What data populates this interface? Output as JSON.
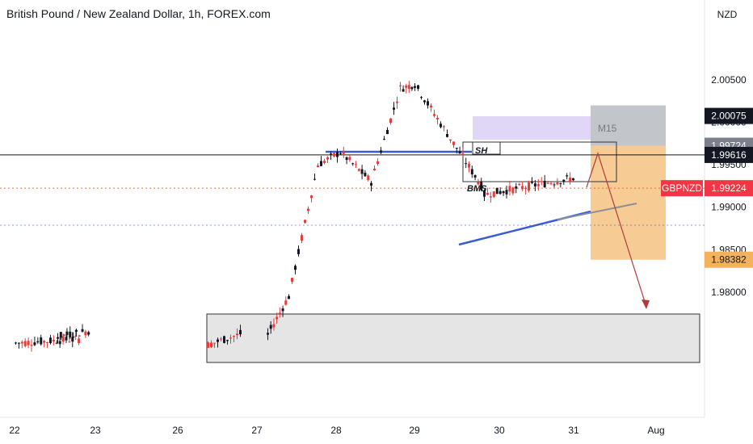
{
  "chart_data": {
    "type": "candlestick",
    "title": "British Pound / New Zealand Dollar, 1h, FOREX.com",
    "symbol": "GBPNZD",
    "currency_label": "NZD",
    "x_ticks": [
      "22",
      "23",
      "26",
      "27",
      "28",
      "29",
      "30",
      "31",
      "Aug"
    ],
    "y_ticks": [
      "2.00500",
      "2.00000",
      "1.99500",
      "1.99000",
      "1.98500",
      "1.98000"
    ],
    "y_range": [
      1.9735,
      2.0168
    ],
    "price_labels": [
      {
        "label": "2.00075",
        "value": 2.00075,
        "kind": "dark"
      },
      {
        "label": "1.99724",
        "value": 1.99724,
        "kind": "gray"
      },
      {
        "label": "1.99616",
        "value": 1.99616,
        "kind": "dark"
      },
      {
        "label": "1.99224",
        "value": 1.99224,
        "kind": "red",
        "tag": "GBPNZD"
      },
      {
        "label": "1.98382",
        "value": 1.98382,
        "kind": "orange"
      }
    ],
    "annotations": [
      "SH",
      "BMS",
      "M15"
    ],
    "colors": {
      "up": "#131722",
      "down": "#e83b3b",
      "trendline": "#3b5bd6",
      "target": "#f0b46a",
      "stop": "#9aa0aa",
      "arrow": "#b23a3a",
      "zone": "#b9a6e8"
    },
    "candles_notes": "Hourly GBPNZD: base ~1.978 on 26-27, rally to ~2.006 high on 29, pullback and ascending triangle on 30-31, short setup targeting 1.98382"
  }
}
